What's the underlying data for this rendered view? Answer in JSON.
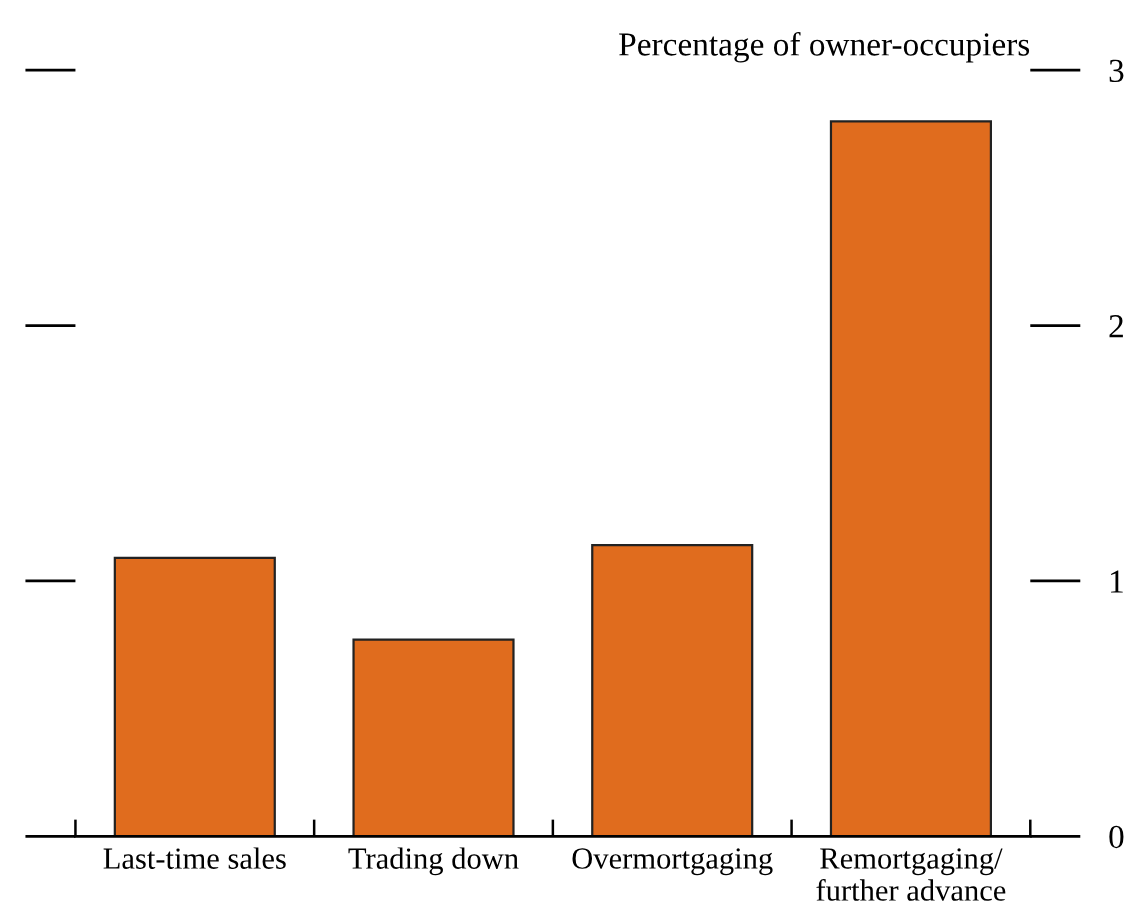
{
  "chart_data": {
    "type": "bar",
    "ylabel": "Percentage of owner-occupiers",
    "categories": [
      "Last-time sales",
      "Trading down",
      "Overmortgaging",
      "Remortgaging/\nfurther advance"
    ],
    "values": [
      1.09,
      0.77,
      1.14,
      2.8
    ],
    "color": "#e06c1e",
    "ylim": [
      0,
      3
    ],
    "yticks": [
      0,
      1,
      2,
      3
    ],
    "grid": false,
    "legend": false
  }
}
